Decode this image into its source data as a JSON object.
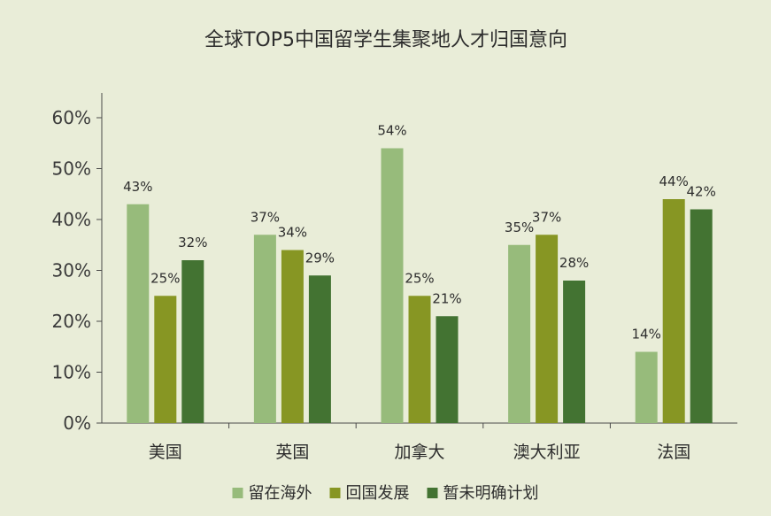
{
  "chart_data": {
    "type": "bar",
    "title": "全球TOP5中国留学生集聚地人才归国意向",
    "categories": [
      "美国",
      "英国",
      "加拿大",
      "澳大利亚",
      "法国"
    ],
    "series": [
      {
        "name": "留在海外",
        "values": [
          43,
          37,
          54,
          35,
          14
        ],
        "color": "#97bb7b"
      },
      {
        "name": "回国发展",
        "values": [
          25,
          34,
          25,
          37,
          44
        ],
        "color": "#879623"
      },
      {
        "name": "暂未明确计划",
        "values": [
          32,
          29,
          21,
          28,
          42
        ],
        "color": "#437332"
      }
    ],
    "ylim": [
      0,
      60
    ],
    "yticks": [
      0,
      10,
      20,
      30,
      40,
      50,
      60
    ],
    "ytick_labels": [
      "0%",
      "10%",
      "20%",
      "30%",
      "40%",
      "50%",
      "60%"
    ],
    "value_suffix": "%",
    "grid": false,
    "legend_position": "bottom",
    "colors": {
      "background": "#e9edd8",
      "axis": "#4a4a4a"
    }
  }
}
